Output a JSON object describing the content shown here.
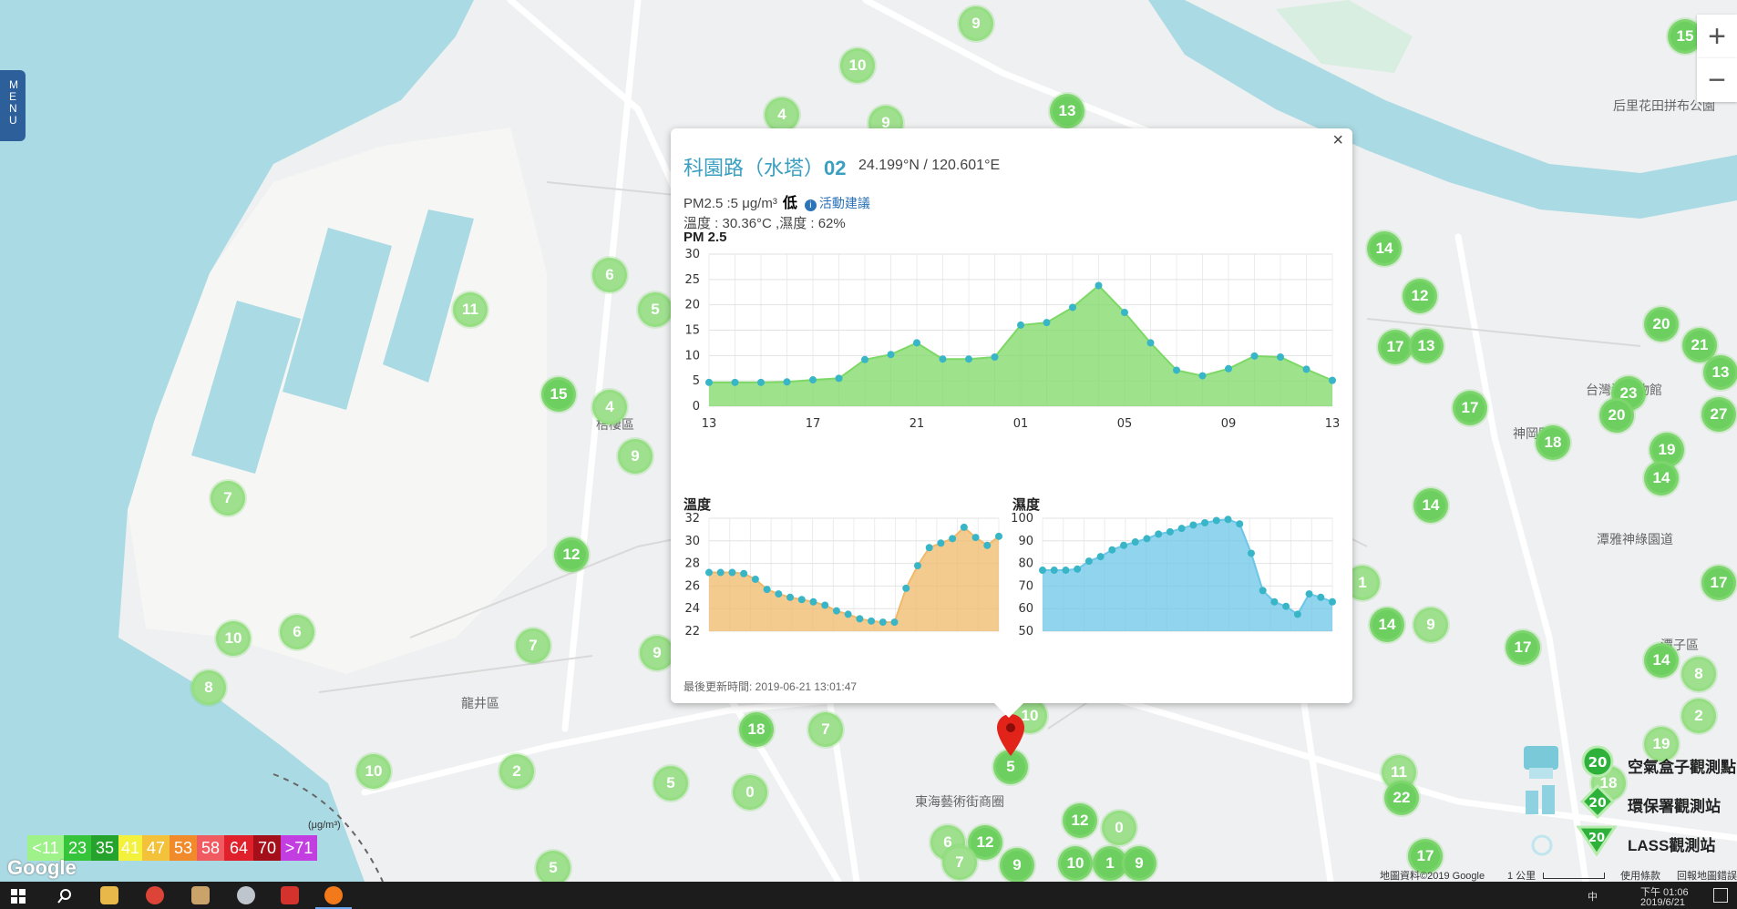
{
  "menu": {
    "label": "MENU"
  },
  "zoom": {
    "in": "+",
    "out": "−"
  },
  "popup": {
    "close": "×",
    "name": "科園路（水塔）",
    "id": "02",
    "coords": "24.199°N / 120.601°E",
    "pm_text": "PM2.5 :5 μg/m³",
    "level": "低",
    "advice": "活動建議",
    "temp_humidity": "溫度 : 30.36°C ,濕度 : 62%",
    "updated": "最後更新時間: 2019-06-21 13:01:47"
  },
  "chart_data": [
    {
      "type": "area",
      "title": "PM 2.5",
      "x_ticks": [
        "13",
        "17",
        "21",
        "01",
        "05",
        "09",
        "13"
      ],
      "ylim": [
        0,
        30
      ],
      "y_ticks": [
        0,
        5,
        10,
        15,
        20,
        25,
        30
      ],
      "grid": true,
      "values": [
        4.7,
        4.7,
        4.7,
        4.8,
        5.2,
        5.5,
        9.2,
        10.2,
        12.5,
        9.3,
        9.3,
        9.7,
        16,
        16.5,
        19.5,
        23.8,
        18.5,
        12.5,
        7.1,
        6,
        7.4,
        9.9,
        9.7,
        7.3,
        5.1
      ],
      "color": "#7dd866"
    },
    {
      "type": "area",
      "title": "溫度",
      "ylim": [
        22,
        32
      ],
      "y_ticks": [
        22,
        24,
        26,
        28,
        30,
        32
      ],
      "grid": true,
      "values": [
        27.2,
        27.2,
        27.2,
        27.1,
        26.6,
        25.7,
        25.3,
        25,
        24.8,
        24.6,
        24.3,
        23.8,
        23.5,
        23.1,
        22.9,
        22.8,
        22.8,
        25.8,
        27.8,
        29.4,
        29.8,
        30.2,
        31.2,
        30.3,
        29.6,
        30.4
      ],
      "color": "#f0b96a"
    },
    {
      "type": "area",
      "title": "濕度",
      "ylim": [
        50,
        100
      ],
      "y_ticks": [
        50,
        60,
        70,
        80,
        90,
        100
      ],
      "grid": true,
      "values": [
        77,
        77,
        77,
        77.5,
        81,
        83,
        86,
        88,
        89.5,
        91,
        93,
        94,
        95.5,
        97,
        98,
        99,
        99.5,
        97.5,
        84.5,
        68,
        63,
        61,
        57.5,
        66.5,
        65,
        63
      ],
      "color": "#6cc6e8"
    }
  ],
  "legend": [
    {
      "label": "<11",
      "color": "#9ff28a"
    },
    {
      "label": "23",
      "color": "#35c43a"
    },
    {
      "label": "35",
      "color": "#26a32c"
    },
    {
      "label": "41",
      "color": "#f3f13b"
    },
    {
      "label": "47",
      "color": "#f3c13a"
    },
    {
      "label": "53",
      "color": "#f08a2a"
    },
    {
      "label": "58",
      "color": "#ef5b61"
    },
    {
      "label": "64",
      "color": "#e0202a"
    },
    {
      "label": "70",
      "color": "#a50f1a"
    },
    {
      "label": ">71",
      "color": "#c23ee0"
    }
  ],
  "legend_unit": "(μg/m³)",
  "station_legend": [
    "空氣盒子觀測點",
    "環保署觀測站",
    "LASS觀測站"
  ],
  "station_legend_value": "20",
  "google_logo": "Google",
  "attribution": {
    "data": "地圖資料©2019 Google",
    "scale": "1 公里",
    "terms": "使用條款",
    "report": "回報地圖錯誤"
  },
  "map_labels": [
    "梧棲區",
    "龍井區",
    "東海藝術街商圈",
    "神岡區",
    "潭雅神綠園道",
    "潭子區",
    "后里花田拼布公園",
    "台灣漆博物館"
  ],
  "markers": [
    "9",
    "10",
    "4",
    "9",
    "13",
    "6",
    "5",
    "11",
    "15",
    "4",
    "9",
    "12",
    "7",
    "6",
    "10",
    "8",
    "7",
    "9",
    "18",
    "7",
    "0",
    "5",
    "2",
    "10",
    "10",
    "5",
    "14",
    "12",
    "17",
    "13",
    "17",
    "20",
    "21",
    "18",
    "19",
    "14",
    "14",
    "14",
    "9",
    "17",
    "23",
    "20",
    "11",
    "22",
    "1",
    "14",
    "8",
    "2",
    "19",
    "18",
    "12",
    "0",
    "6",
    "12",
    "7",
    "9",
    "10",
    "1",
    "9",
    "15",
    "13",
    "27",
    "17",
    "17"
  ],
  "selected_marker": "5",
  "taskbar": {
    "time": "下午 01:06",
    "date": "2019/6/21",
    "ime": "中"
  }
}
